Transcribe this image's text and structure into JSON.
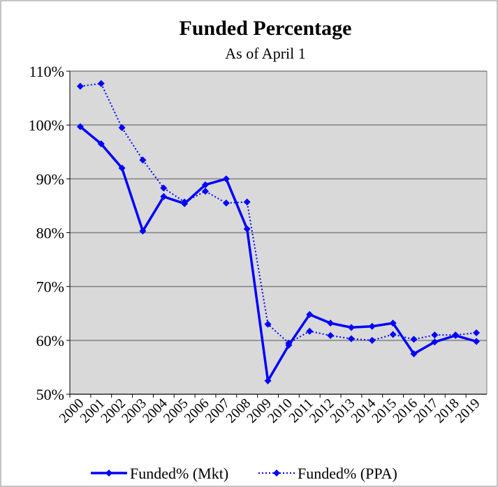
{
  "chart_data": {
    "type": "line",
    "title": "Funded Percentage",
    "subtitle": "As of April 1",
    "categories": [
      "2000",
      "2001",
      "2002",
      "2003",
      "2004",
      "2005",
      "2006",
      "2007",
      "2008",
      "2009",
      "2010",
      "2011",
      "2012",
      "2013",
      "2014",
      "2015",
      "2016",
      "2017",
      "2018",
      "2019"
    ],
    "series": [
      {
        "name": "Funded% (Mkt)",
        "color": "#0000ff",
        "style": "solid",
        "values": [
          99.7,
          96.5,
          92,
          80.3,
          86.7,
          85.4,
          88.9,
          90,
          80.7,
          52.5,
          59.1,
          64.8,
          63.2,
          62.4,
          62.6,
          63.2,
          57.5,
          59.7,
          60.9,
          59.8
        ]
      },
      {
        "name": "Funded% (PPA)",
        "color": "#0000ff",
        "style": "dotted",
        "values": [
          107.2,
          107.7,
          99.5,
          93.5,
          88.3,
          85.7,
          87.7,
          85.5,
          85.7,
          63,
          59.5,
          61.7,
          60.9,
          60.3,
          60,
          61.1,
          60.2,
          61,
          61,
          61.4
        ]
      }
    ],
    "ylim": [
      50,
      110
    ],
    "yticks": [
      {
        "value": 50,
        "label": "50%"
      },
      {
        "value": 60,
        "label": "60%"
      },
      {
        "value": 70,
        "label": "70%"
      },
      {
        "value": 80,
        "label": "80%"
      },
      {
        "value": 90,
        "label": "90%"
      },
      {
        "value": 100,
        "label": "100%"
      },
      {
        "value": 110,
        "label": "110%"
      }
    ],
    "grid": true,
    "legend": "bottom"
  }
}
